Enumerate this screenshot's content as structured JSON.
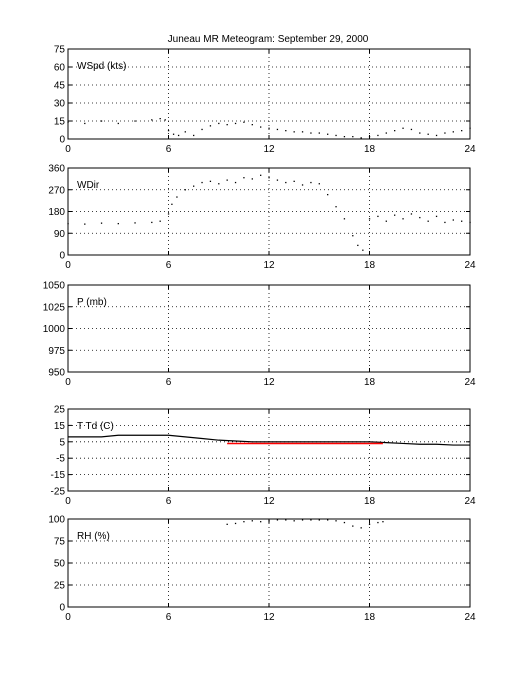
{
  "title": "Juneau MR Meteogram: September 29, 2000",
  "chart_data": [
    {
      "type": "scatter",
      "label": "WSpd (kts)",
      "xlim": [
        0,
        24
      ],
      "xticks": [
        0,
        6,
        12,
        18,
        24
      ],
      "ylim": [
        0,
        75
      ],
      "yticks": [
        0,
        15,
        30,
        45,
        60,
        75
      ],
      "grid": true,
      "series": [
        {
          "color": "#000000",
          "x": [
            0,
            1,
            2,
            3,
            4,
            5,
            5.5,
            5.8,
            6,
            6.3,
            6.6,
            7,
            7.5,
            8,
            8.5,
            9,
            9.5,
            10,
            10.5,
            11,
            11.5,
            12,
            12.5,
            13,
            13.5,
            14,
            14.5,
            15,
            15.5,
            16,
            16.5,
            17,
            17.5,
            18,
            18.5,
            19,
            19.5,
            20,
            20.5,
            21,
            21.5,
            22,
            22.5,
            23,
            23.5,
            24
          ],
          "y": [
            14,
            13,
            15,
            13,
            15,
            16,
            17,
            16,
            7,
            4,
            3,
            6,
            3,
            8,
            11,
            13,
            12,
            13,
            14,
            12,
            10,
            9,
            8,
            7,
            6,
            6,
            5,
            5,
            4,
            3,
            2,
            2,
            1,
            2,
            3,
            5,
            7,
            9,
            8,
            5,
            4,
            3,
            5,
            6,
            7,
            9
          ]
        }
      ]
    },
    {
      "type": "scatter",
      "label": "WDir",
      "xlim": [
        0,
        24
      ],
      "xticks": [
        0,
        6,
        12,
        18,
        24
      ],
      "ylim": [
        0,
        360
      ],
      "yticks": [
        0,
        90,
        180,
        270,
        360
      ],
      "grid": true,
      "series": [
        {
          "color": "#000000",
          "x": [
            0,
            1,
            2,
            3,
            4,
            5,
            5.5,
            6,
            6.2,
            6.5,
            7,
            7.5,
            8,
            8.5,
            9,
            9.5,
            10,
            10.5,
            11,
            11.5,
            12,
            12.5,
            13,
            13.5,
            14,
            14.5,
            15,
            15.5,
            16,
            16.5,
            17,
            17.3,
            17.6,
            18,
            18.5,
            19,
            19.5,
            20,
            20.5,
            21,
            21.5,
            22,
            22.5,
            23,
            23.5,
            24
          ],
          "y": [
            130,
            128,
            132,
            130,
            133,
            135,
            140,
            170,
            210,
            240,
            270,
            285,
            300,
            305,
            295,
            310,
            300,
            320,
            315,
            330,
            320,
            310,
            300,
            305,
            290,
            300,
            295,
            250,
            200,
            150,
            80,
            40,
            20,
            150,
            160,
            140,
            165,
            150,
            170,
            155,
            140,
            160,
            135,
            145,
            140,
            135
          ]
        }
      ]
    },
    {
      "type": "scatter",
      "label": "P (mb)",
      "xlim": [
        0,
        24
      ],
      "xticks": [
        0,
        6,
        12,
        18,
        24
      ],
      "ylim": [
        950,
        1050
      ],
      "yticks": [
        950,
        975,
        1000,
        1025,
        1050
      ],
      "grid": true,
      "series": []
    },
    {
      "type": "line",
      "label": "T Td (C)",
      "xlim": [
        0,
        24
      ],
      "xticks": [
        0,
        6,
        12,
        18,
        24
      ],
      "ylim": [
        -25,
        25
      ],
      "yticks": [
        -25,
        -15,
        -5,
        5,
        15,
        25
      ],
      "grid": true,
      "series": [
        {
          "color": "#000000",
          "x": [
            0,
            1,
            2,
            3,
            4,
            5,
            6,
            7,
            8,
            9,
            10,
            11,
            12,
            13,
            14,
            15,
            16,
            17,
            18,
            19,
            20,
            21,
            22,
            23,
            24
          ],
          "y": [
            8,
            8,
            8,
            9,
            9,
            9,
            9,
            8,
            7,
            6,
            5.5,
            5,
            5,
            5,
            5,
            5,
            5,
            5,
            5,
            4.5,
            4,
            3.5,
            3.5,
            3,
            3
          ]
        },
        {
          "color": "#ff0000",
          "x": [
            9.5,
            10,
            11,
            12,
            13,
            14,
            15,
            16,
            17,
            18,
            18.8
          ],
          "y": [
            4,
            4,
            4,
            4,
            4,
            4,
            4,
            4,
            4,
            4,
            4
          ]
        }
      ]
    },
    {
      "type": "scatter",
      "label": "RH (%)",
      "xlim": [
        0,
        24
      ],
      "xticks": [
        0,
        6,
        12,
        18,
        24
      ],
      "ylim": [
        0,
        100
      ],
      "yticks": [
        0,
        25,
        50,
        75,
        100
      ],
      "grid": true,
      "series": [
        {
          "color": "#000000",
          "x": [
            9.5,
            10,
            10.5,
            11,
            11.5,
            12,
            12.5,
            13,
            13.5,
            14,
            14.5,
            15,
            15.5,
            16,
            16.5,
            17,
            17.5,
            18,
            18.5,
            18.8
          ],
          "y": [
            94,
            95,
            97,
            98,
            97,
            98,
            99,
            99,
            98,
            99,
            99,
            99,
            99,
            98,
            96,
            92,
            90,
            94,
            96,
            97
          ]
        }
      ]
    }
  ]
}
